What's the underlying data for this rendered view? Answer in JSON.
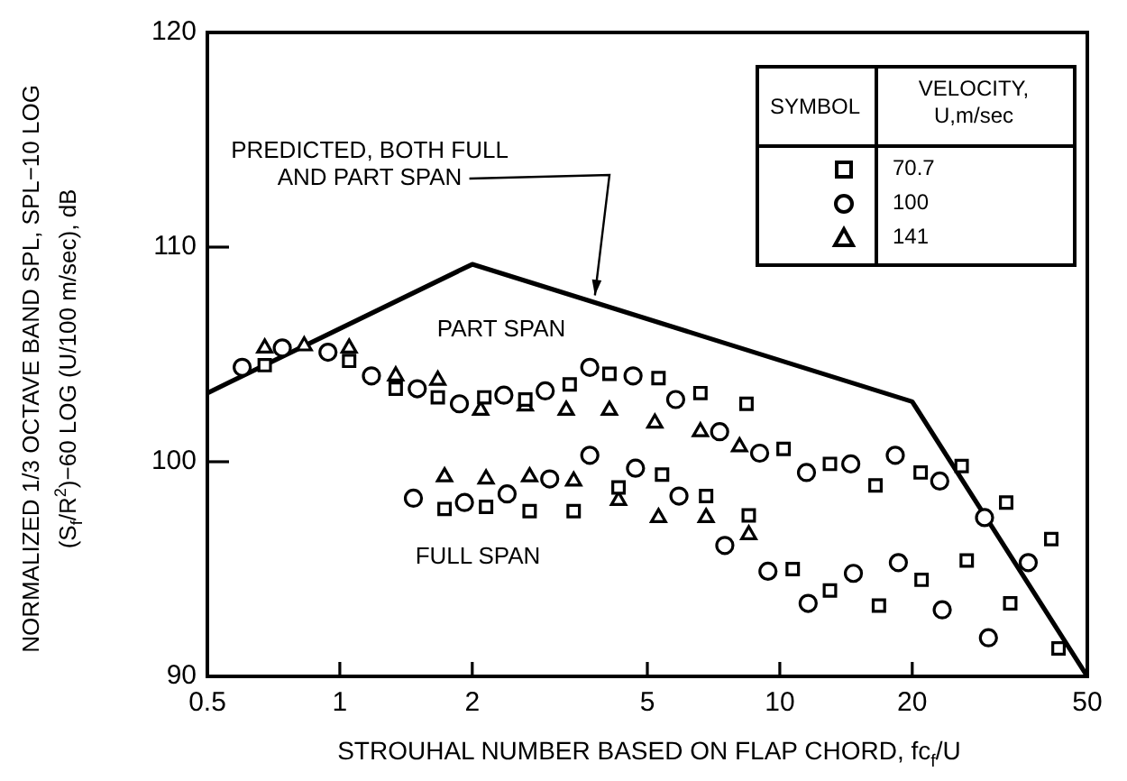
{
  "chart_data": {
    "type": "scatter",
    "xlabel": "STROUHAL NUMBER BASED ON FLAP CHORD, fc$_{f}$/U",
    "ylabel": "NORMALIZED 1/3 OCTAVE BAND SPL, SPL−10 LOG (S$_{f}$/R$^{2}$)−60 LOG (U/100 m/sec), dB",
    "legend_title": "VELOCITY, U,m/sec",
    "legend": "top right",
    "log": "x",
    "xlim": [
      0.5,
      50
    ],
    "xticks": [
      0.5,
      1,
      2,
      5,
      10,
      20,
      50
    ],
    "ylim": [
      90,
      120
    ],
    "yticks": [
      90,
      100,
      110,
      120
    ],
    "annotations": [
      "PART SPAN",
      "FULL SPAN",
      "SYMBOL"
    ],
    "series": [
      {
        "name": "70.7",
        "type": "scatter",
        "marker": "square",
        "color": "#000000",
        "x": [
          0.675,
          0.815,
          1.05,
          1.34,
          1.67,
          2.13,
          2.64,
          3.33,
          4.1,
          5.3,
          6.6,
          8.4,
          10.2,
          13.0,
          16.5,
          20.9,
          25.9,
          1.73,
          2.15,
          2.7,
          3.4,
          5.4,
          4.3,
          6.8,
          8.5,
          10.7,
          13.0,
          21.0,
          16.8,
          26.6,
          32.7,
          41.4,
          33.4,
          43.0
        ],
        "values": [
          104.5,
          null,
          104.7,
          103.4,
          103.0,
          103.0,
          102.9,
          103.6,
          104.1,
          103.9,
          103.2,
          102.7,
          100.6,
          99.9,
          98.9,
          99.5,
          99.8,
          97.8,
          97.9,
          97.7,
          97.7,
          99.4,
          98.8,
          98.4,
          97.5,
          95.0,
          94.0,
          94.5,
          93.3,
          95.4,
          98.1,
          96.4,
          93.4,
          91.3
        ]
      },
      {
        "name": "100",
        "type": "scatter",
        "marker": "circle",
        "color": "#000000",
        "x": [
          0.6,
          0.74,
          0.82,
          0.94,
          1.18,
          1.5,
          1.87,
          2.36,
          2.93,
          3.7,
          4.64,
          5.8,
          7.3,
          9.0,
          11.5,
          14.5,
          18.3,
          23.1,
          1.47,
          1.92,
          2.4,
          3.0,
          3.7,
          4.7,
          5.9,
          7.5,
          9.4,
          11.6,
          14.7,
          18.6,
          23.4,
          29.2,
          29.8,
          36.7
        ],
        "values": [
          104.4,
          105.3,
          null,
          105.1,
          104.0,
          103.4,
          102.7,
          103.1,
          103.3,
          104.4,
          104.0,
          102.9,
          101.4,
          100.4,
          99.5,
          99.9,
          100.3,
          99.1,
          98.3,
          98.1,
          98.5,
          99.2,
          100.3,
          99.7,
          98.4,
          96.1,
          94.9,
          93.4,
          94.8,
          95.3,
          93.1,
          97.4,
          91.8,
          95.3
        ]
      },
      {
        "name": "141",
        "type": "scatter",
        "marker": "triangle",
        "color": "#000000",
        "x": [
          0.675,
          0.83,
          1.05,
          1.34,
          1.67,
          2.09,
          2.64,
          3.27,
          4.1,
          5.2,
          6.6,
          8.1,
          1.73,
          2.15,
          2.7,
          3.4,
          4.3,
          5.3,
          6.8,
          8.5
        ],
        "values": [
          105.3,
          105.4,
          105.3,
          104.0,
          103.8,
          102.4,
          102.6,
          102.4,
          102.4,
          101.8,
          101.4,
          100.7,
          99.3,
          99.2,
          99.3,
          99.1,
          98.2,
          97.4,
          97.4,
          96.6
        ]
      },
      {
        "name": "PREDICTED, BOTH FULL AND PART SPAN",
        "type": "line",
        "marker": "none",
        "color": "#000000",
        "x": [
          0.5,
          2,
          20,
          50
        ],
        "values": [
          103.2,
          109.2,
          102.8,
          90
        ]
      }
    ]
  }
}
